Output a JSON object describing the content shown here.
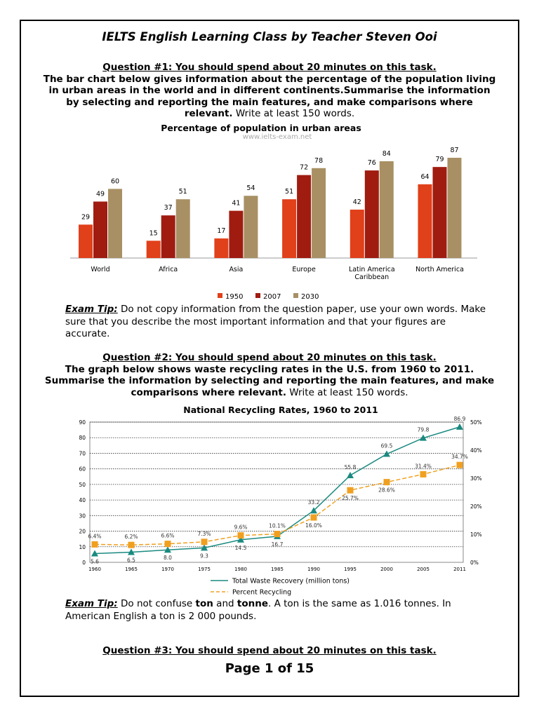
{
  "title": "IELTS English Learning Class by Teacher Steven Ooi",
  "q1": {
    "heading": "Question #1: You should spend about 20 minutes on this task.",
    "body_bold": "The bar chart below gives information about the percentage of the population living in urban areas in the world and in different continents.Summarise the information by selecting and reporting the main features, and make comparisons where relevant.",
    "body_plain": " Write at least 150 words."
  },
  "tip1": {
    "label": "Exam Tip:",
    "text": " Do not copy information from the question paper, use your own words. Make sure that you describe the most important information and that your figures are accurate."
  },
  "q2": {
    "heading": "Question #2: You should spend about 20 minutes on this task.",
    "body_bold": "The graph below shows waste recycling rates in the U.S. from 1960 to 2011. Summarise the information by selecting and reporting the main features, and make comparisons where relevant.",
    "body_plain": " Write at least 150 words."
  },
  "tip2": {
    "label": "Exam Tip:",
    "t1": " Do not confuse ",
    "w1": "ton",
    "t2": " and ",
    "w2": "tonne",
    "t3": ". A ton is the same as 1.016 tonnes. In American English a ton is 2 000 pounds."
  },
  "q3": {
    "heading": "Question #3: You should spend about 20 minutes on this task."
  },
  "page": "Page 1 of 15",
  "chart_data": [
    {
      "type": "bar",
      "title": "Percentage of population in urban areas",
      "subtitle": "www.ielts-exam.net",
      "categories": [
        "World",
        "Africa",
        "Asia",
        "Europe",
        "Latin America Caribbean",
        "North America"
      ],
      "category_lines": [
        [
          "World"
        ],
        [
          "Africa"
        ],
        [
          "Asia"
        ],
        [
          "Europe"
        ],
        [
          "Latin America",
          "Caribbean"
        ],
        [
          "North America"
        ]
      ],
      "series": [
        {
          "name": "1950",
          "color": "#e0401a",
          "values": [
            29,
            15,
            17,
            51,
            42,
            64
          ]
        },
        {
          "name": "2007",
          "color": "#a01c10",
          "values": [
            49,
            37,
            41,
            72,
            76,
            79
          ]
        },
        {
          "name": "2030",
          "color": "#a89064",
          "values": [
            60,
            51,
            54,
            78,
            84,
            87
          ]
        }
      ],
      "legend": "bottom",
      "ylim": [
        0,
        90
      ]
    },
    {
      "type": "line",
      "title": "National Recycling Rates, 1960 to 2011",
      "x": [
        "1960",
        "1965",
        "1970",
        "1975",
        "1980",
        "1985",
        "1990",
        "1995",
        "2000",
        "2005",
        "2011"
      ],
      "yticks": [
        "0",
        "10",
        "20",
        "30",
        "40",
        "50",
        "60",
        "70",
        "80",
        "90"
      ],
      "y2ticks": [
        "0%",
        "10%",
        "20%",
        "30%",
        "40%",
        "50%"
      ],
      "ylim": [
        0,
        90
      ],
      "y2lim": [
        0,
        50
      ],
      "grid": true,
      "legend": "bottom",
      "series": [
        {
          "name": "Total Waste Recovery (million tons)",
          "color": "#1a8a80",
          "marker": "triangle",
          "axis": "left",
          "values": [
            5.6,
            6.5,
            8.0,
            9.3,
            14.5,
            16.7,
            33.2,
            55.8,
            69.5,
            79.8,
            86.9
          ],
          "labels": [
            "5.6",
            "6.5",
            "8.0",
            "9.3",
            "14.5",
            "16.7",
            "33.2",
            "55.8",
            "69.5",
            "79.8",
            "86.9"
          ]
        },
        {
          "name": "Percent Recycling",
          "color": "#f0a020",
          "marker": "square",
          "axis": "right",
          "dashed": true,
          "values": [
            6.4,
            6.2,
            6.6,
            7.3,
            9.6,
            10.1,
            16.0,
            25.7,
            28.6,
            31.4,
            34.7
          ],
          "labels": [
            "6.4%",
            "6.2%",
            "6.6%",
            "7.3%",
            "9.6%",
            "10.1%",
            "16.0%",
            "25.7%",
            "28.6%",
            "31.4%",
            "34.7%"
          ]
        }
      ]
    }
  ]
}
